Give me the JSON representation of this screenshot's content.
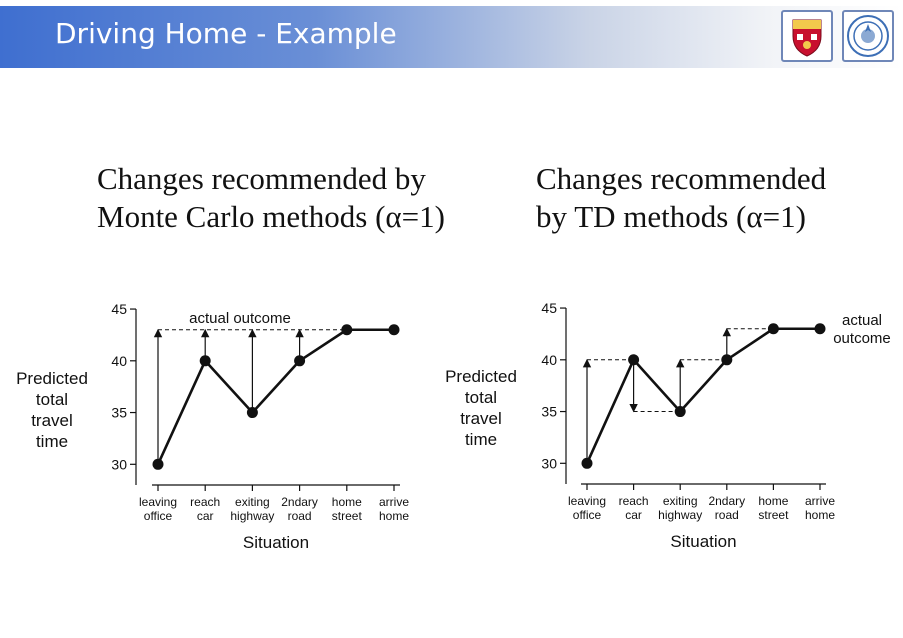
{
  "header": {
    "title": "Driving Home - Example",
    "accent_color": "#3f6fd0",
    "logos": [
      "university-crest-icon",
      "university-seal-icon"
    ]
  },
  "panels": [
    {
      "heading_line1": "Changes recommended by",
      "heading_line2": "Monte Carlo methods (α=1)"
    },
    {
      "heading_line1": "Changes recommended",
      "heading_line2": "by TD methods (α=1)"
    }
  ],
  "chart_data": [
    {
      "type": "line",
      "categories": [
        [
          "leaving",
          "office"
        ],
        [
          "reach",
          "car"
        ],
        [
          "exiting",
          "highway"
        ],
        [
          "2ndary",
          "road"
        ],
        [
          "home",
          "street"
        ],
        [
          "arrive",
          "home"
        ]
      ],
      "values": [
        30,
        40,
        35,
        40,
        43,
        43
      ],
      "ylabel_lines": [
        "Predicted",
        "total",
        "travel",
        "time"
      ],
      "xlabel": "Situation",
      "ylim": [
        28,
        45
      ],
      "yticks": [
        30,
        35,
        40,
        45
      ],
      "annotation": [
        "actual outcome"
      ],
      "target_line": {
        "value": 43,
        "from_index": 0,
        "to_index": 4
      },
      "arrows": [
        {
          "index": 0,
          "from": 30,
          "to": 43
        },
        {
          "index": 1,
          "from": 40,
          "to": 43
        },
        {
          "index": 2,
          "from": 35,
          "to": 43
        },
        {
          "index": 3,
          "from": 40,
          "to": 43
        }
      ],
      "guides": []
    },
    {
      "type": "line",
      "categories": [
        [
          "leaving",
          "office"
        ],
        [
          "reach",
          "car"
        ],
        [
          "exiting",
          "highway"
        ],
        [
          "2ndary",
          "road"
        ],
        [
          "home",
          "street"
        ],
        [
          "arrive",
          "home"
        ]
      ],
      "values": [
        30,
        40,
        35,
        40,
        43,
        43
      ],
      "ylabel_lines": [
        "Predicted",
        "total",
        "travel",
        "time"
      ],
      "xlabel": "Situation",
      "ylim": [
        28,
        45
      ],
      "yticks": [
        30,
        35,
        40,
        45
      ],
      "annotation": [
        "actual",
        "outcome"
      ],
      "arrows": [
        {
          "index": 0,
          "from": 30,
          "to": 40
        },
        {
          "index": 1,
          "from": 40,
          "to": 35
        },
        {
          "index": 2,
          "from": 35,
          "to": 40
        },
        {
          "index": 3,
          "from": 40,
          "to": 43
        }
      ],
      "guides": [
        {
          "from_index": 0,
          "to_index": 1,
          "value": 40
        },
        {
          "from_index": 1,
          "to_index": 2,
          "value": 35
        },
        {
          "from_index": 2,
          "to_index": 3,
          "value": 40
        },
        {
          "from_index": 3,
          "to_index": 4,
          "value": 43
        }
      ]
    }
  ]
}
